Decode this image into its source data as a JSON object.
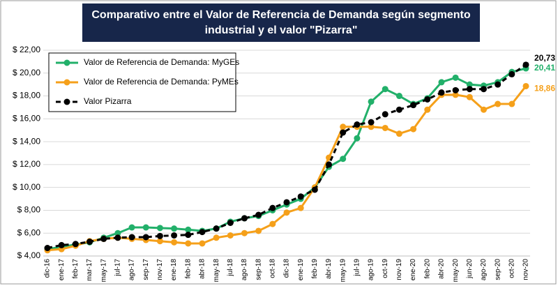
{
  "chart_data": {
    "type": "line",
    "title": [
      "Comparativo entre el Valor de Referencia de Demanda según segmento",
      "industrial y el valor \"Pizarra\""
    ],
    "categories": [
      "dic-16",
      "ene-17",
      "feb-17",
      "mar-17",
      "may-17",
      "jul-17",
      "ago-17",
      "sep-17",
      "nov-17",
      "ene-18",
      "feb-18",
      "abr-18",
      "may-18",
      "jul-18",
      "ago-18",
      "sep-18",
      "oct-18",
      "dic-18",
      "ene-19",
      "feb-19",
      "abr-19",
      "may-19",
      "jul-19",
      "ago-19",
      "oct-19",
      "nov-19",
      "ene-20",
      "feb-20",
      "abr-20",
      "may-20",
      "jun-20",
      "ago-20",
      "sep-20",
      "oct-20",
      "nov-20"
    ],
    "series": [
      {
        "name": "Valor de Referencia de Demanda: MyGEs",
        "color": "#22b06a",
        "dashed": false,
        "values": [
          4.6,
          4.8,
          5.0,
          5.2,
          5.6,
          6.0,
          6.5,
          6.5,
          6.45,
          6.4,
          6.3,
          6.2,
          6.4,
          7.0,
          7.3,
          7.5,
          8.0,
          8.5,
          9.0,
          10.0,
          11.8,
          12.5,
          14.3,
          17.5,
          18.6,
          18.0,
          17.3,
          17.8,
          19.2,
          19.6,
          19.0,
          18.9,
          19.2,
          20.1,
          20.41
        ],
        "value_labels": [
          null,
          null,
          null,
          null,
          null,
          null,
          null,
          null,
          null,
          null,
          null,
          null,
          null,
          null,
          null,
          null,
          null,
          null,
          null,
          null,
          null,
          null,
          null,
          null,
          null,
          null,
          null,
          null,
          null,
          null,
          null,
          null,
          null,
          null,
          "20,41"
        ]
      },
      {
        "name": "Valor de Referencia de Demanda: PyMEs",
        "color": "#f5a01a",
        "dashed": false,
        "values": [
          4.5,
          4.6,
          4.9,
          5.3,
          5.5,
          5.6,
          5.5,
          5.4,
          5.3,
          5.2,
          5.1,
          5.1,
          5.6,
          5.8,
          6.0,
          6.2,
          6.8,
          7.8,
          8.2,
          10.0,
          12.6,
          15.3,
          15.3,
          15.3,
          15.2,
          14.7,
          15.1,
          16.8,
          18.1,
          18.1,
          17.9,
          16.8,
          17.3,
          17.3,
          18.86
        ],
        "value_labels": [
          null,
          null,
          null,
          null,
          null,
          null,
          null,
          null,
          null,
          null,
          null,
          null,
          null,
          null,
          null,
          null,
          null,
          null,
          null,
          null,
          null,
          null,
          null,
          null,
          null,
          null,
          null,
          null,
          null,
          null,
          null,
          null,
          null,
          null,
          "18,86"
        ]
      },
      {
        "name": "Valor Pizarra",
        "color": "#000000",
        "dashed": true,
        "values": [
          4.7,
          4.95,
          5.05,
          5.25,
          5.5,
          5.6,
          5.65,
          5.65,
          5.75,
          5.8,
          5.85,
          6.1,
          6.4,
          6.9,
          7.3,
          7.6,
          8.2,
          8.7,
          9.2,
          9.8,
          12.0,
          14.8,
          15.5,
          15.7,
          16.4,
          16.8,
          17.2,
          17.7,
          18.3,
          18.5,
          18.6,
          18.6,
          19.0,
          19.9,
          20.73
        ],
        "value_labels": [
          null,
          null,
          null,
          null,
          null,
          null,
          null,
          null,
          null,
          null,
          null,
          null,
          null,
          null,
          null,
          null,
          null,
          null,
          null,
          null,
          null,
          null,
          null,
          null,
          null,
          null,
          null,
          null,
          null,
          null,
          null,
          null,
          null,
          null,
          "20,73"
        ]
      }
    ],
    "ylim": [
      4,
      22
    ],
    "yticks": [
      {
        "value": 4,
        "label": "$ 4,00"
      },
      {
        "value": 6,
        "label": "$ 6,00"
      },
      {
        "value": 8,
        "label": "$ 8,00"
      },
      {
        "value": 10,
        "label": "$ 10,00"
      },
      {
        "value": 12,
        "label": "$ 12,00"
      },
      {
        "value": 14,
        "label": "$ 14,00"
      },
      {
        "value": 16,
        "label": "$ 16,00"
      },
      {
        "value": 18,
        "label": "$ 18,00"
      },
      {
        "value": 20,
        "label": "$ 20,00"
      },
      {
        "value": 22,
        "label": "$ 22,00"
      }
    ],
    "grid": true,
    "legend": "top-left"
  }
}
